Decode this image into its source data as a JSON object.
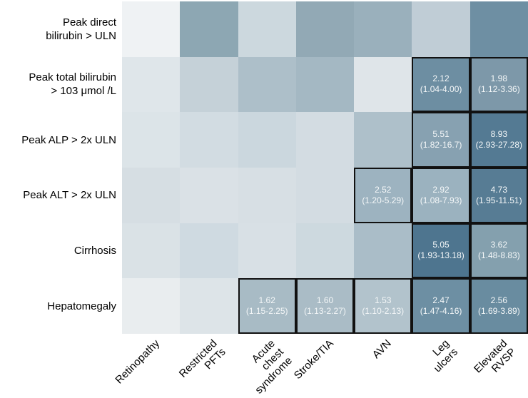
{
  "chart_data": {
    "type": "heatmap",
    "title": "",
    "xlabel": "",
    "ylabel": "",
    "legend": "none",
    "grid_lines": "off",
    "cell_value_format": "odds ratio with 95% CI in parentheses; shown only in outlined (significant) cells",
    "row_labels": [
      "Peak direct\nbilirubin > ULN",
      "Peak total bilirubin\n> 103 μmol /L",
      "Peak ALP > 2x ULN",
      "Peak ALT > 2x ULN",
      "Cirrhosis",
      "Hepatomegaly"
    ],
    "col_labels": [
      "Retinopathy",
      "Restricted\nPFTs",
      "Acute chest\nsyndrome",
      "Stroke/TIA",
      "AVN",
      "Leg ulcers",
      "Elevated\nRVSP"
    ],
    "cells": [
      [
        {
          "color": "#eff2f4"
        },
        {
          "color": "#8da7b3"
        },
        {
          "color": "#ccd8de"
        },
        {
          "color": "#92a9b5"
        },
        {
          "color": "#9ab0bc"
        },
        {
          "color": "#c0cdd6"
        },
        {
          "color": "#6e8fa3"
        }
      ],
      [
        {
          "color": "#dfe6ea"
        },
        {
          "color": "#c5d1d8"
        },
        {
          "color": "#adbfc9"
        },
        {
          "color": "#a4b8c3"
        },
        {
          "color": "#dfe5e9"
        },
        {
          "color": "#6d8ea2",
          "value": "2.12",
          "ci": "(1.04-4.00)",
          "significant": true
        },
        {
          "color": "#7d98a9",
          "value": "1.98",
          "ci": "(1.12-3.36)",
          "significant": true
        }
      ],
      [
        {
          "color": "#dce4e8"
        },
        {
          "color": "#d2dce2"
        },
        {
          "color": "#cbd7de"
        },
        {
          "color": "#d3dce2"
        },
        {
          "color": "#aec0ca"
        },
        {
          "color": "#87a1b1",
          "value": "5.51",
          "ci": "(1.82-16.7)",
          "significant": true
        },
        {
          "color": "#547a93",
          "value": "8.93",
          "ci": "(2.93-27.28)",
          "significant": true
        }
      ],
      [
        {
          "color": "#d6dee3"
        },
        {
          "color": "#dae1e6"
        },
        {
          "color": "#d7dfe4"
        },
        {
          "color": "#d3dce2"
        },
        {
          "color": "#9db3c0",
          "value": "2.52",
          "ci": "(1.20-5.29)",
          "significant": true
        },
        {
          "color": "#9bb2bf",
          "value": "2.92",
          "ci": "(1.08-7.93)",
          "significant": true
        },
        {
          "color": "#577c94",
          "value": "4.73",
          "ci": "(1.95-11.51)",
          "significant": true
        }
      ],
      [
        {
          "color": "#dae2e6"
        },
        {
          "color": "#cfdae1"
        },
        {
          "color": "#d8e0e5"
        },
        {
          "color": "#cdd9df"
        },
        {
          "color": "#aabdc8"
        },
        {
          "color": "#4e758f",
          "value": "5.05",
          "ci": "(1.93-13.18)",
          "significant": true
        },
        {
          "color": "#84a0ae",
          "value": "3.62",
          "ci": "(1.48-8.83)",
          "significant": true
        }
      ],
      [
        {
          "color": "#e9edef"
        },
        {
          "color": "#dde4e8"
        },
        {
          "color": "#a8bbc5",
          "value": "1.62",
          "ci": "(1.15-2.25)",
          "significant": true
        },
        {
          "color": "#aabcc6",
          "value": "1.60",
          "ci": "(1.13-2.27)",
          "significant": true
        },
        {
          "color": "#b2c3cc",
          "value": "1.53",
          "ci": "(1.10-2.13)",
          "significant": true
        },
        {
          "color": "#6d8fa3",
          "value": "2.47",
          "ci": "(1.47-4.16)",
          "significant": true
        },
        {
          "color": "#698ca0",
          "value": "2.56",
          "ci": "(1.69-3.89)",
          "significant": true
        }
      ]
    ]
  },
  "colors": {
    "background": "#ffffff",
    "significant_cell_border": "#111111",
    "cell_text": "#f4f7f8",
    "axis_label_text": "#000000"
  }
}
